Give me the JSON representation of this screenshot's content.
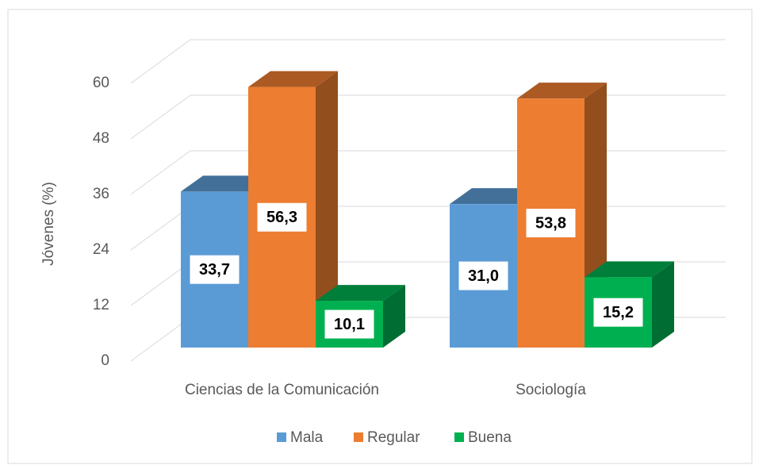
{
  "chart_data": {
    "type": "bar3d",
    "y_label": "Jóvenes (%)",
    "categories": [
      "Ciencias de la Comunicación",
      "Sociología"
    ],
    "series": [
      {
        "name": "Mala",
        "color": "#5b9bd5",
        "values": [
          33.7,
          31.0
        ],
        "value_labels": [
          "33,7",
          "31,0"
        ]
      },
      {
        "name": "Regular",
        "color": "#ed7d31",
        "values": [
          56.3,
          53.8
        ],
        "value_labels": [
          "56,3",
          "53,8"
        ]
      },
      {
        "name": "Buena",
        "color": "#00b050",
        "values": [
          10.1,
          15.2
        ],
        "value_labels": [
          "10,1",
          "15,2"
        ]
      }
    ],
    "ylim": [
      0,
      60
    ],
    "yticks": [
      0,
      12,
      24,
      36,
      48,
      60
    ],
    "grid": true,
    "legend": "bottom"
  }
}
